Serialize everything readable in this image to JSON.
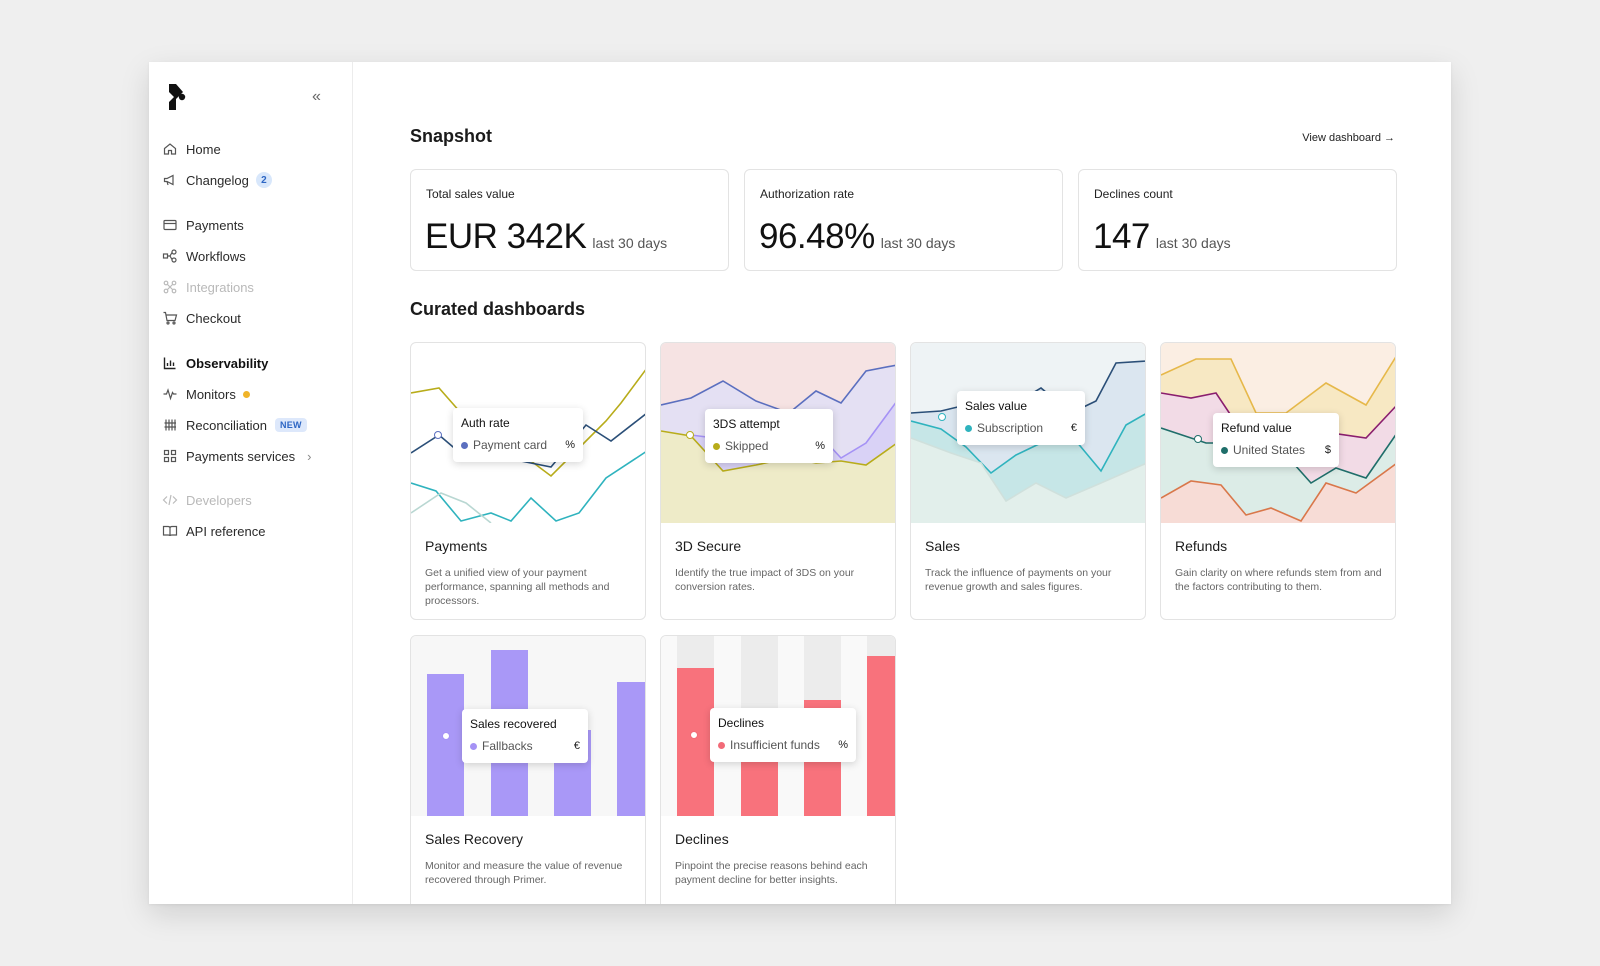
{
  "sidebar": {
    "collapse_icon": "«",
    "items": [
      {
        "label": "Home",
        "icon": "home-icon"
      },
      {
        "label": "Changelog",
        "icon": "megaphone-icon",
        "badge": "2"
      },
      {
        "label": "Payments",
        "icon": "card-icon"
      },
      {
        "label": "Workflows",
        "icon": "workflow-icon"
      },
      {
        "label": "Integrations",
        "icon": "integrations-icon",
        "disabled": true
      },
      {
        "label": "Checkout",
        "icon": "cart-icon"
      },
      {
        "label": "Observability",
        "icon": "chart-icon",
        "active": true
      },
      {
        "label": "Monitors",
        "icon": "pulse-icon",
        "status_color": "#f0b429"
      },
      {
        "label": "Reconciliation",
        "icon": "reconciliation-icon",
        "tag": "NEW"
      },
      {
        "label": "Payments services",
        "icon": "grid-icon",
        "chevron": "›"
      },
      {
        "label": "Developers",
        "icon": "code-icon",
        "disabled": true
      },
      {
        "label": "API reference",
        "icon": "book-icon"
      }
    ]
  },
  "snapshot": {
    "title": "Snapshot",
    "view_link": "View dashboard  →",
    "stats": [
      {
        "label": "Total sales value",
        "value": "EUR 342K",
        "sub": "last 30 days"
      },
      {
        "label": "Authorization rate",
        "value": "96.48%",
        "sub": "last 30 days"
      },
      {
        "label": "Declines count",
        "value": "147",
        "sub": "last 30 days"
      }
    ]
  },
  "curated": {
    "title": "Curated dashboards",
    "cards": [
      {
        "title": "Payments",
        "description": "Get a unified view of your payment performance, spanning all methods and processors.",
        "tooltip": {
          "title": "Auth rate",
          "item": "Payment card",
          "unit": "%",
          "color": "#5b6fbf"
        }
      },
      {
        "title": "3D Secure",
        "description": "Identify the true impact of 3DS on your conversion rates.",
        "tooltip": {
          "title": "3DS attempt",
          "item": "Skipped",
          "unit": "%",
          "color": "#b8ac1a"
        }
      },
      {
        "title": "Sales",
        "description": "Track the influence of payments on your revenue growth and sales figures.",
        "tooltip": {
          "title": "Sales value",
          "item": "Subscription",
          "unit": "€",
          "color": "#2fb3be"
        }
      },
      {
        "title": "Refunds",
        "description": "Gain clarity on where refunds stem from and the factors contributing to them.",
        "tooltip": {
          "title": "Refund value",
          "item": "United States",
          "unit": "$",
          "color": "#1f6e6a"
        }
      },
      {
        "title": "Sales Recovery",
        "description": "Monitor and measure the value of revenue recovered through Primer.",
        "tooltip": {
          "title": "Sales recovered",
          "item": "Fallbacks",
          "unit": "€",
          "color": "#a592f5"
        }
      },
      {
        "title": "Declines",
        "description": "Pinpoint the precise reasons behind each payment decline for better insights.",
        "tooltip": {
          "title": "Declines",
          "item": "Insufficient funds",
          "unit": "%",
          "color": "#f26b78"
        }
      }
    ]
  }
}
